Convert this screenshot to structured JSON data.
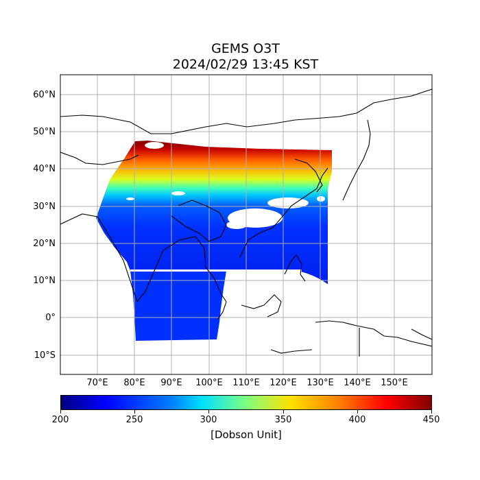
{
  "title": {
    "line1": "GEMS O3T",
    "line2": "2024/02/29 13:45 KST"
  },
  "map": {
    "lon_ticks": [
      "70°E",
      "80°E",
      "90°E",
      "100°E",
      "110°E",
      "120°E",
      "130°E",
      "140°E",
      "150°E"
    ],
    "lat_ticks": [
      "60°N",
      "50°N",
      "40°N",
      "30°N",
      "20°N",
      "10°N",
      "0°",
      "10°S"
    ],
    "grid": true
  },
  "colorbar": {
    "min": 200,
    "max": 450,
    "ticks": [
      "200",
      "250",
      "300",
      "350",
      "400",
      "450"
    ],
    "label": "[Dobson Unit]",
    "colormap": "jet"
  }
}
